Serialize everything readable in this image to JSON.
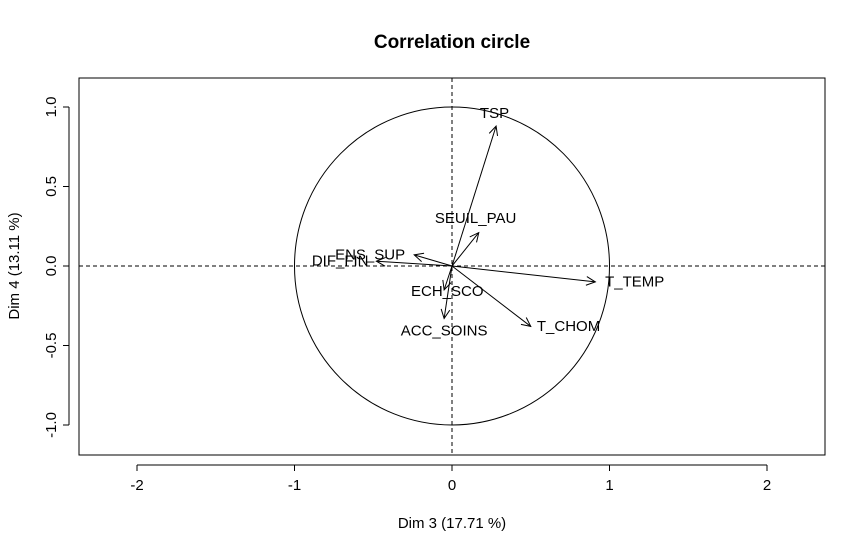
{
  "chart_data": {
    "type": "scatter",
    "title": "Correlation circle",
    "xlabel": "Dim 3 (17.71 %)",
    "ylabel": "Dim 4 (13.11 %)",
    "xlim": [
      -2.4,
      2.4
    ],
    "ylim": [
      -1.2,
      1.2
    ],
    "x_ticks": [
      -2,
      -1,
      0,
      1,
      2
    ],
    "x_tick_labels": [
      "-2",
      "-1",
      "0",
      "1",
      "2"
    ],
    "y_ticks": [
      -1.0,
      -0.5,
      0.0,
      0.5,
      1.0
    ],
    "y_tick_labels": [
      "-1.0",
      "-0.5",
      "0.0",
      "0.5",
      "1.0"
    ],
    "unit_circle_radius": 1,
    "reference_lines": {
      "x": 0,
      "y": 0,
      "style": "dashed"
    },
    "grid": false,
    "variables": [
      {
        "name": "TSP",
        "x": 0.28,
        "y": 0.88,
        "label_x": 0.27,
        "label_y": 0.96
      },
      {
        "name": "SEUIL_PAU",
        "x": 0.17,
        "y": 0.21,
        "label_x": 0.15,
        "label_y": 0.3
      },
      {
        "name": "ENS_SUP",
        "x": -0.24,
        "y": 0.07,
        "label_x": -0.52,
        "label_y": 0.07
      },
      {
        "name": "DIF_FIN",
        "x": -0.48,
        "y": 0.03,
        "label_x": -0.71,
        "label_y": 0.03
      },
      {
        "name": "T_TEMP",
        "x": 0.91,
        "y": -0.1,
        "label_x": 1.16,
        "label_y": -0.1
      },
      {
        "name": "ECH_SCO",
        "x": -0.05,
        "y": -0.15,
        "label_x": -0.03,
        "label_y": -0.16
      },
      {
        "name": "T_CHOM",
        "x": 0.5,
        "y": -0.38,
        "label_x": 0.74,
        "label_y": -0.38
      },
      {
        "name": "ACC_SOINS",
        "x": -0.05,
        "y": -0.33,
        "label_x": -0.05,
        "label_y": -0.41
      }
    ]
  }
}
